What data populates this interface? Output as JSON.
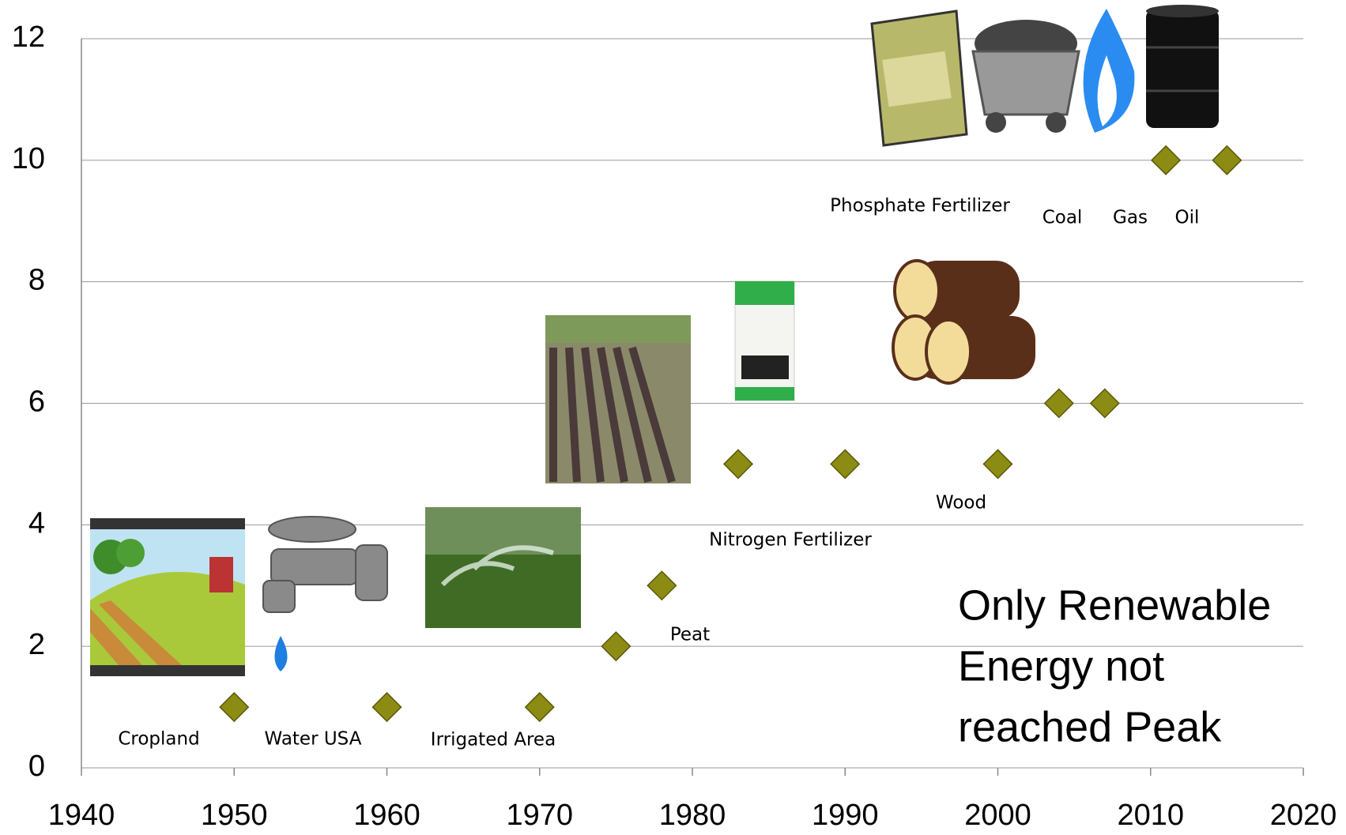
{
  "chart_data": {
    "type": "scatter",
    "series": [
      {
        "color": "#8c8c14",
        "x": [
          1950,
          1960,
          1970,
          1975,
          1978,
          1983,
          1990,
          2000,
          2004,
          2007,
          2011,
          2015
        ],
        "values": [
          1,
          1,
          1,
          2,
          3,
          5,
          5,
          5,
          6,
          6,
          10,
          10
        ]
      }
    ],
    "xlim": [
      1940,
      2020
    ],
    "xticks": [
      1940,
      1950,
      1960,
      1970,
      1980,
      1990,
      2000,
      2010,
      2020
    ],
    "ylim": [
      0,
      12
    ],
    "yticks": [
      0,
      2,
      4,
      6,
      8,
      10,
      12
    ],
    "grid": true,
    "annotations": [
      "Cropland",
      "Water USA",
      "Irrigated Area",
      "Peat",
      "Nitrogen Fertilizer",
      "Wood",
      "Phosphate Fertilizer",
      "Coal",
      "Gas",
      "Oil"
    ],
    "note": [
      "Only Renewable",
      "Energy not",
      "reached Peak"
    ]
  }
}
